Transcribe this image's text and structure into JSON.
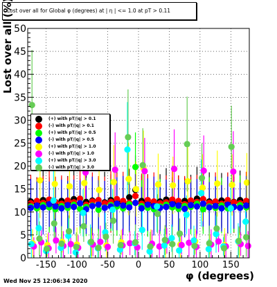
{
  "title": "Lost over all for Global φ (degrees) at | η | <= 1.0 at pT > 0.11",
  "timestamp": "Wed Nov 25 12:06:34 2020",
  "chart_data": {
    "type": "scatter",
    "xlabel": "φ (degrees)",
    "ylabel": "Lost over all (%)",
    "xlim": [
      -180,
      180
    ],
    "ylim": [
      0,
      50
    ],
    "x_ticks": [
      -150,
      -100,
      -50,
      0,
      50,
      100,
      150
    ],
    "y_ticks": [
      0,
      5,
      10,
      15,
      20,
      25,
      30,
      35,
      40,
      45,
      50
    ],
    "grid": true,
    "legend_position": "left",
    "series": [
      {
        "name": "(+) with pT/|q| > 0.1",
        "color": "#000000",
        "x": [
          -175,
          -165,
          -155,
          -145,
          -135,
          -125,
          -115,
          -105,
          -95,
          -85,
          -75,
          -65,
          -55,
          -45,
          -35,
          -25,
          -15,
          -5,
          5,
          15,
          25,
          35,
          45,
          55,
          65,
          75,
          85,
          95,
          105,
          115,
          125,
          135,
          145,
          155,
          165,
          175
        ],
        "y": [
          12.3,
          11.8,
          12.6,
          12.1,
          11.5,
          12.4,
          12.0,
          12.8,
          11.9,
          12.2,
          12.5,
          11.7,
          12.1,
          12.6,
          12.3,
          11.9,
          13.2,
          14.8,
          12.4,
          12.0,
          11.6,
          12.3,
          12.7,
          12.1,
          11.8,
          12.4,
          12.2,
          12.9,
          11.7,
          12.3,
          12.0,
          12.5,
          11.9,
          12.2,
          12.6,
          12.1
        ]
      },
      {
        "name": "(-) with pT/|q| > 0.1",
        "color": "#ff0000",
        "x": [
          -175,
          -165,
          -155,
          -145,
          -135,
          -125,
          -115,
          -105,
          -95,
          -85,
          -75,
          -65,
          -55,
          -45,
          -35,
          -25,
          -15,
          -5,
          5,
          15,
          25,
          35,
          45,
          55,
          65,
          75,
          85,
          95,
          105,
          115,
          125,
          135,
          145,
          155,
          165,
          175
        ],
        "y": [
          11.9,
          12.4,
          12.0,
          12.7,
          12.2,
          11.8,
          12.5,
          12.1,
          12.9,
          11.6,
          12.3,
          12.6,
          11.9,
          12.2,
          12.8,
          12.4,
          12.0,
          13.5,
          11.8,
          12.6,
          12.3,
          11.9,
          12.1,
          12.7,
          12.4,
          11.7,
          12.5,
          12.2,
          12.8,
          12.0,
          12.3,
          11.8,
          12.6,
          12.1,
          11.9,
          12.4
        ]
      },
      {
        "name": "(+) with pT/|q| > 0.5",
        "color": "#00ff00",
        "x": [
          -175,
          -165,
          -155,
          -145,
          -135,
          -125,
          -115,
          -105,
          -95,
          -85,
          -75,
          -65,
          -55,
          -45,
          -35,
          -25,
          -15,
          -5,
          5,
          15,
          25,
          35,
          45,
          55,
          65,
          75,
          85,
          95,
          105,
          115,
          125,
          135,
          145,
          155,
          165,
          175
        ],
        "y": [
          11.2,
          10.8,
          11.5,
          11.0,
          10.6,
          11.3,
          10.9,
          11.6,
          10.7,
          11.1,
          11.4,
          10.5,
          11.0,
          11.5,
          11.2,
          10.8,
          11.7,
          19.8,
          11.3,
          10.9,
          10.6,
          11.2,
          11.6,
          11.0,
          10.7,
          11.3,
          11.1,
          11.8,
          10.6,
          11.2,
          10.9,
          11.4,
          10.8,
          11.1,
          11.5,
          11.0
        ]
      },
      {
        "name": "(-) with pT/|q| > 0.5",
        "color": "#0000ff",
        "x": [
          -175,
          -165,
          -155,
          -145,
          -135,
          -125,
          -115,
          -105,
          -95,
          -85,
          -75,
          -65,
          -55,
          -45,
          -35,
          -25,
          -15,
          -5,
          5,
          15,
          25,
          35,
          45,
          55,
          65,
          75,
          85,
          95,
          105,
          115,
          125,
          135,
          145,
          155,
          165,
          175
        ],
        "y": [
          10.9,
          11.4,
          11.0,
          11.7,
          11.2,
          10.8,
          11.5,
          11.1,
          11.9,
          10.6,
          11.3,
          11.6,
          10.9,
          11.2,
          11.8,
          11.4,
          11.0,
          12.0,
          10.8,
          11.6,
          11.3,
          10.9,
          11.1,
          11.7,
          11.4,
          10.7,
          11.5,
          11.2,
          11.8,
          11.0,
          11.3,
          10.8,
          11.6,
          11.1,
          10.9,
          11.4
        ]
      },
      {
        "name": "(+) with pT/|q| > 1.0",
        "color": "#ffff00",
        "x": [
          -172,
          -160,
          -148,
          -136,
          -124,
          -112,
          -100,
          -88,
          -76,
          -64,
          -52,
          -40,
          -28,
          -16,
          -4,
          8,
          20,
          32,
          44,
          56,
          68,
          80,
          92,
          104,
          116,
          128,
          140,
          152,
          164,
          176
        ],
        "y": [
          3.2,
          16.9,
          2.8,
          16.1,
          3.5,
          15.6,
          2.9,
          16.3,
          3.1,
          14.8,
          2.7,
          16.5,
          3.4,
          17.2,
          15.0,
          19.5,
          2.6,
          16.0,
          3.3,
          15.8,
          2.9,
          16.7,
          3.6,
          15.3,
          3.0,
          16.2,
          2.8,
          15.9,
          3.2,
          16.4
        ]
      },
      {
        "name": "(-) with pT/|q| > 1.0",
        "color": "#ff00ff",
        "x": [
          -170,
          -158,
          -146,
          -134,
          -122,
          -110,
          -98,
          -86,
          -74,
          -62,
          -50,
          -38,
          -26,
          -14,
          -2,
          10,
          22,
          34,
          46,
          58,
          70,
          82,
          94,
          106,
          118,
          130,
          142,
          154,
          166,
          178
        ],
        "y": [
          2.5,
          3.4,
          2.1,
          3.8,
          2.6,
          3.0,
          2.2,
          18.6,
          2.9,
          3.5,
          2.4,
          19.2,
          2.7,
          3.2,
          2.3,
          18.9,
          3.1,
          2.5,
          3.7,
          19.4,
          2.8,
          3.3,
          2.4,
          19.0,
          2.9,
          3.6,
          2.5,
          18.8,
          3.0,
          2.6
        ]
      },
      {
        "name": "(+) with pT/|q| > 3.0",
        "color": "#00ffff",
        "x": [
          -174,
          -162,
          -150,
          -138,
          -126,
          -114,
          -102,
          -90,
          -78,
          -66,
          -54,
          -42,
          -30,
          -18,
          -6,
          6,
          18,
          30,
          42,
          54,
          66,
          78,
          90,
          102,
          114,
          126,
          138,
          150,
          162,
          174
        ],
        "y": [
          3.0,
          6.5,
          1.5,
          12.5,
          2.2,
          4.8,
          1.2,
          9.8,
          3.4,
          2.1,
          5.6,
          10.5,
          1.8,
          23.6,
          3.2,
          6.1,
          1.4,
          11.2,
          2.7,
          4.3,
          1.6,
          9.4,
          3.8,
          14.1,
          1.9,
          5.2,
          2.5,
          10.8,
          3.6,
          7.9
        ]
      },
      {
        "name": "(-) with pT/|q| > 3.0",
        "color": "#66cc55",
        "x": [
          -173,
          -161,
          -149,
          -137,
          -125,
          -113,
          -101,
          -89,
          -77,
          -65,
          -53,
          -41,
          -29,
          -17,
          -5,
          7,
          19,
          31,
          43,
          55,
          67,
          79,
          91,
          103,
          115,
          127,
          139,
          151,
          163,
          175
        ],
        "y": [
          33.3,
          4.2,
          2.0,
          7.5,
          3.1,
          5.8,
          2.4,
          6.9,
          3.5,
          2.2,
          4.6,
          8.1,
          2.8,
          26.3,
          3.4,
          20.2,
          2.5,
          9.6,
          3.9,
          3.0,
          5.3,
          24.8,
          2.6,
          17.4,
          3.2,
          6.4,
          2.1,
          24.2,
          3.7,
          4.5
        ]
      }
    ]
  }
}
